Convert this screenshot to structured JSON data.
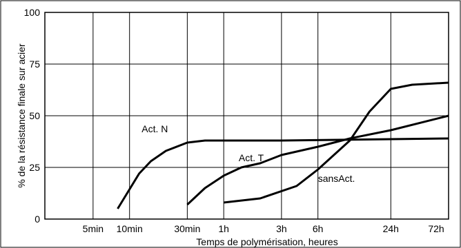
{
  "chart_data": {
    "type": "line",
    "xlabel": "Temps de polymérisation, heures",
    "ylabel": "% de la résistance finale sur acier",
    "x_ticks": [
      "5min",
      "10min",
      "30min",
      "1h",
      "3h",
      "6h",
      "24h",
      "72h"
    ],
    "x_tick_hours": [
      0.0833,
      0.1667,
      0.5,
      1,
      3,
      6,
      24,
      72
    ],
    "x_scale": "log",
    "xlim_hours": [
      0.0333,
      72
    ],
    "y_ticks": [
      "0",
      "25",
      "50",
      "75",
      "100"
    ],
    "ylim": [
      0,
      100
    ],
    "grid": true,
    "series": [
      {
        "name": "Act. N",
        "x_hours": [
          0.133,
          0.2,
          0.25,
          0.333,
          0.5,
          0.7,
          1.0,
          3.0,
          72
        ],
        "y": [
          5,
          22,
          28,
          33,
          37,
          38,
          38,
          38,
          39
        ]
      },
      {
        "name": "Act. T",
        "x_hours": [
          0.5,
          0.7,
          1.0,
          1.4,
          2.0,
          3.0,
          6.0,
          11.0,
          24.0,
          72.0
        ],
        "y": [
          7,
          15,
          21,
          25,
          27,
          31,
          35,
          39,
          43,
          50
        ]
      },
      {
        "name": "sansAct.",
        "x_hours": [
          1.0,
          2.0,
          4.0,
          6.0,
          11.0,
          16.0,
          24.0,
          36.0,
          72.0
        ],
        "y": [
          8,
          10,
          16,
          24,
          38,
          52,
          63,
          65,
          66
        ]
      }
    ]
  }
}
